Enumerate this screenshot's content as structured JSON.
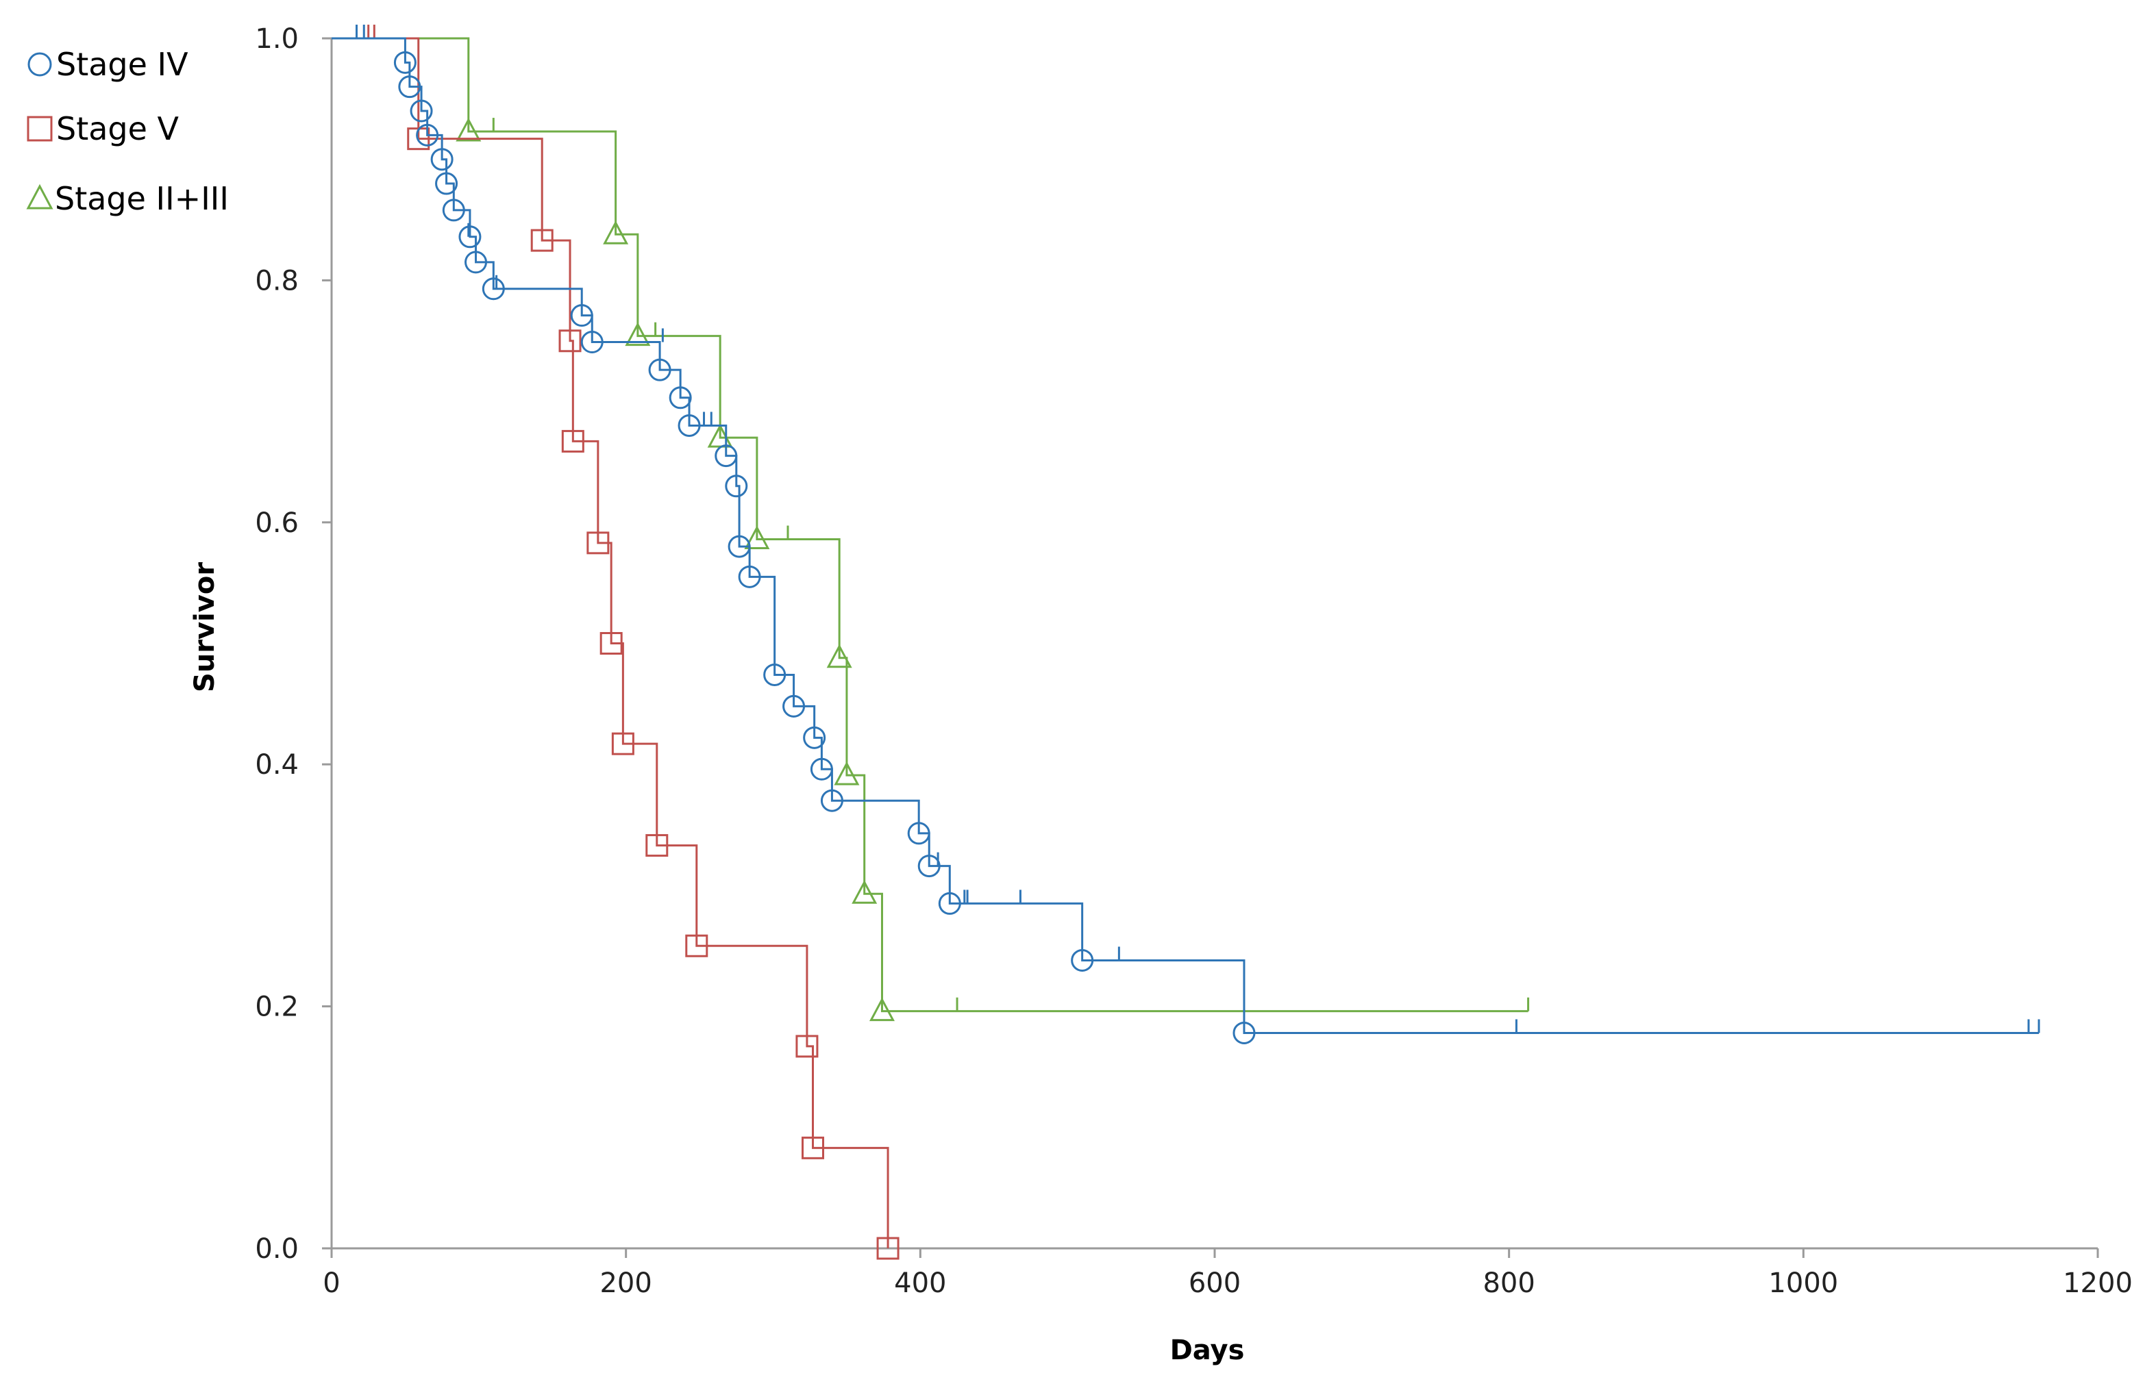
{
  "chart_data": {
    "type": "line",
    "subtype": "kaplan-meier-step",
    "xlabel": "Days",
    "ylabel": "Survivor",
    "xlim": [
      0,
      1200
    ],
    "ylim": [
      0,
      1.0
    ],
    "x_ticks": [
      0,
      200,
      400,
      600,
      800,
      1000,
      1200
    ],
    "y_ticks": [
      0.0,
      0.2,
      0.4,
      0.6,
      0.8,
      1.0
    ],
    "x_tick_labels": [
      "0",
      "200",
      "400",
      "600",
      "800",
      "1000",
      "1200"
    ],
    "y_tick_labels": [
      "0.0",
      "0.2",
      "0.4",
      "0.6",
      "0.8",
      "1.0"
    ],
    "grid": false,
    "legend_position": "top-left",
    "series": [
      {
        "name": "Stage IV",
        "marker": "circle",
        "color": "#2e75b6",
        "steps": [
          [
            0,
            1.0
          ],
          [
            50,
            0.98
          ],
          [
            53,
            0.96
          ],
          [
            61,
            0.94
          ],
          [
            65,
            0.92
          ],
          [
            75,
            0.9
          ],
          [
            78,
            0.88
          ],
          [
            83,
            0.858
          ],
          [
            94,
            0.836
          ],
          [
            98,
            0.815
          ],
          [
            110,
            0.793
          ],
          [
            170,
            0.771
          ],
          [
            177,
            0.749
          ],
          [
            223,
            0.726
          ],
          [
            237,
            0.703
          ],
          [
            243,
            0.68
          ],
          [
            268,
            0.655
          ],
          [
            275,
            0.63
          ],
          [
            277,
            0.58
          ],
          [
            284,
            0.555
          ],
          [
            301,
            0.474
          ],
          [
            314,
            0.448
          ],
          [
            328,
            0.422
          ],
          [
            333,
            0.396
          ],
          [
            340,
            0.37
          ],
          [
            399,
            0.343
          ],
          [
            406,
            0.316
          ],
          [
            420,
            0.285
          ],
          [
            510,
            0.238
          ],
          [
            620,
            0.178
          ]
        ],
        "events": [
          [
            50,
            0.98
          ],
          [
            53,
            0.96
          ],
          [
            61,
            0.94
          ],
          [
            65,
            0.92
          ],
          [
            75,
            0.9
          ],
          [
            78,
            0.88
          ],
          [
            83,
            0.858
          ],
          [
            94,
            0.836
          ],
          [
            98,
            0.815
          ],
          [
            110,
            0.793
          ],
          [
            170,
            0.771
          ],
          [
            177,
            0.749
          ],
          [
            223,
            0.726
          ],
          [
            237,
            0.703
          ],
          [
            243,
            0.68
          ],
          [
            268,
            0.655
          ],
          [
            275,
            0.63
          ],
          [
            277,
            0.58
          ],
          [
            284,
            0.555
          ],
          [
            301,
            0.474
          ],
          [
            314,
            0.448
          ],
          [
            328,
            0.422
          ],
          [
            333,
            0.396
          ],
          [
            340,
            0.37
          ],
          [
            399,
            0.343
          ],
          [
            406,
            0.316
          ],
          [
            420,
            0.285
          ],
          [
            510,
            0.238
          ],
          [
            620,
            0.178
          ]
        ],
        "censored": [
          [
            17,
            1.0
          ],
          [
            22,
            1.0
          ],
          [
            93,
            0.836
          ],
          [
            112,
            0.793
          ],
          [
            225,
            0.749
          ],
          [
            253,
            0.68
          ],
          [
            258,
            0.68
          ],
          [
            412,
            0.316
          ],
          [
            430,
            0.285
          ],
          [
            432,
            0.285
          ],
          [
            468,
            0.285
          ],
          [
            535,
            0.238
          ],
          [
            805,
            0.178
          ],
          [
            1153,
            0.178
          ],
          [
            1160,
            0.178
          ]
        ],
        "end_x": 1160
      },
      {
        "name": "Stage V",
        "marker": "square",
        "color": "#c0504d",
        "steps": [
          [
            0,
            1.0
          ],
          [
            59,
            0.917
          ],
          [
            143,
            0.833
          ],
          [
            162,
            0.75
          ],
          [
            164,
            0.667
          ],
          [
            181,
            0.583
          ],
          [
            190,
            0.5
          ],
          [
            198,
            0.417
          ],
          [
            221,
            0.333
          ],
          [
            248,
            0.25
          ],
          [
            323,
            0.167
          ],
          [
            327,
            0.083
          ],
          [
            378,
            0.0
          ]
        ],
        "events": [
          [
            59,
            0.917
          ],
          [
            143,
            0.833
          ],
          [
            162,
            0.75
          ],
          [
            164,
            0.667
          ],
          [
            181,
            0.583
          ],
          [
            190,
            0.5
          ],
          [
            198,
            0.417
          ],
          [
            221,
            0.333
          ],
          [
            248,
            0.25
          ],
          [
            323,
            0.167
          ],
          [
            327,
            0.083
          ],
          [
            378,
            0.0
          ]
        ],
        "censored": [
          [
            25,
            1.0
          ],
          [
            29,
            1.0
          ]
        ],
        "end_x": 378
      },
      {
        "name": "Stage II+III",
        "marker": "triangle",
        "color": "#70ad47",
        "steps": [
          [
            0,
            1.0
          ],
          [
            93,
            0.923
          ],
          [
            193,
            0.838
          ],
          [
            208,
            0.754
          ],
          [
            264,
            0.67
          ],
          [
            289,
            0.586
          ],
          [
            345,
            0.488
          ],
          [
            350,
            0.391
          ],
          [
            362,
            0.293
          ],
          [
            374,
            0.196
          ]
        ],
        "events": [
          [
            93,
            0.923
          ],
          [
            193,
            0.838
          ],
          [
            208,
            0.754
          ],
          [
            264,
            0.67
          ],
          [
            289,
            0.586
          ],
          [
            345,
            0.488
          ],
          [
            350,
            0.391
          ],
          [
            362,
            0.293
          ],
          [
            374,
            0.196
          ]
        ],
        "censored": [
          [
            110,
            0.923
          ],
          [
            220,
            0.754
          ],
          [
            310,
            0.586
          ],
          [
            425,
            0.196
          ],
          [
            813,
            0.196
          ]
        ],
        "end_x": 813
      }
    ]
  }
}
